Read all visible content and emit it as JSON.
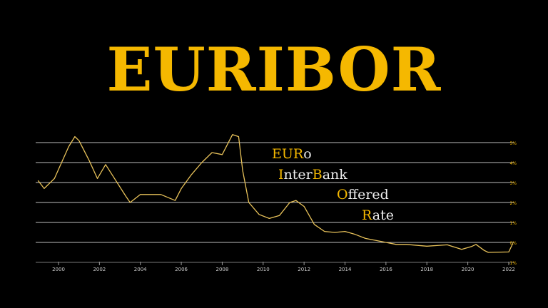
{
  "title": "EURIBOR",
  "acronym": [
    {
      "highlight": "EUR",
      "rest": "o"
    },
    {
      "highlight": "I",
      "rest": "nter",
      "highlight2": "B",
      "rest2": "ank"
    },
    {
      "highlight": "O",
      "rest": "ffered"
    },
    {
      "highlight": "R",
      "rest": "ate"
    }
  ],
  "colors": {
    "accent": "#f5b800",
    "line": "#e8c25a",
    "grid": "#bdbdbd",
    "background": "#000000"
  },
  "chart_data": {
    "type": "line",
    "title": "",
    "xlabel": "",
    "ylabel": "",
    "xlim": [
      1999,
      2022.3
    ],
    "ylim": [
      -1,
      5
    ],
    "grid": true,
    "x_ticks": [
      "2000",
      "2002",
      "2004",
      "2006",
      "2008",
      "2010",
      "2012",
      "2014",
      "2016",
      "2018",
      "2020",
      "2022"
    ],
    "y_ticks": [
      "5%",
      "4%",
      "3%",
      "2%",
      "1%",
      "0%",
      "-1%"
    ],
    "series": [
      {
        "x": [
          1999.0,
          1999.3,
          1999.8,
          2000.5,
          2000.8,
          2001.0,
          2001.5,
          2001.9,
          2002.3,
          2002.8,
          2003.3,
          2003.5,
          2004.0,
          2004.5,
          2005.0,
          2005.7,
          2006.0,
          2006.5,
          2007.0,
          2007.5,
          2008.0,
          2008.5,
          2008.8,
          2009.0,
          2009.3,
          2009.8,
          2010.3,
          2010.8,
          2011.3,
          2011.6,
          2012.0,
          2012.5,
          2013.0,
          2013.5,
          2014.0,
          2014.5,
          2015.0,
          2016.0,
          2016.5,
          2017.0,
          2018.0,
          2019.0,
          2019.7,
          2020.2,
          2020.4,
          2020.8,
          2021.0,
          2022.0,
          2022.2
        ],
        "y": [
          3.1,
          2.7,
          3.2,
          4.8,
          5.3,
          5.1,
          4.1,
          3.2,
          3.9,
          3.1,
          2.3,
          2.0,
          2.4,
          2.4,
          2.4,
          2.1,
          2.7,
          3.4,
          4.0,
          4.5,
          4.4,
          5.4,
          5.3,
          3.6,
          2.0,
          1.4,
          1.2,
          1.35,
          2.0,
          2.1,
          1.8,
          0.9,
          0.55,
          0.5,
          0.55,
          0.4,
          0.2,
          0.0,
          -0.1,
          -0.1,
          -0.19,
          -0.12,
          -0.35,
          -0.2,
          -0.1,
          -0.4,
          -0.5,
          -0.48,
          -0.05
        ]
      }
    ]
  }
}
